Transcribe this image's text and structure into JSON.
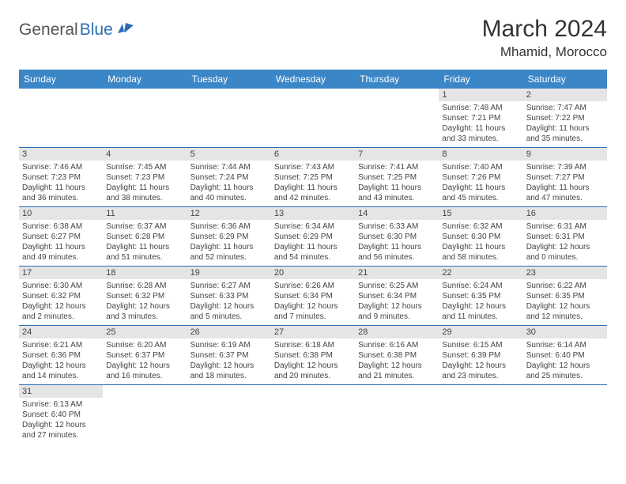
{
  "brand": {
    "part1": "General",
    "part2": "Blue"
  },
  "title": "March 2024",
  "location": "Mhamid, Morocco",
  "colors": {
    "header_bg": "#3b86c7",
    "header_text": "#ffffff",
    "daynum_bg": "#e5e5e5",
    "cell_border": "#2b6db5",
    "brand_blue": "#2b6db5",
    "brand_gray": "#555555"
  },
  "weekdays": [
    "Sunday",
    "Monday",
    "Tuesday",
    "Wednesday",
    "Thursday",
    "Friday",
    "Saturday"
  ],
  "weeks": [
    [
      null,
      null,
      null,
      null,
      null,
      {
        "n": "1",
        "sr": "Sunrise: 7:48 AM",
        "ss": "Sunset: 7:21 PM",
        "dl": "Daylight: 11 hours and 33 minutes."
      },
      {
        "n": "2",
        "sr": "Sunrise: 7:47 AM",
        "ss": "Sunset: 7:22 PM",
        "dl": "Daylight: 11 hours and 35 minutes."
      }
    ],
    [
      {
        "n": "3",
        "sr": "Sunrise: 7:46 AM",
        "ss": "Sunset: 7:23 PM",
        "dl": "Daylight: 11 hours and 36 minutes."
      },
      {
        "n": "4",
        "sr": "Sunrise: 7:45 AM",
        "ss": "Sunset: 7:23 PM",
        "dl": "Daylight: 11 hours and 38 minutes."
      },
      {
        "n": "5",
        "sr": "Sunrise: 7:44 AM",
        "ss": "Sunset: 7:24 PM",
        "dl": "Daylight: 11 hours and 40 minutes."
      },
      {
        "n": "6",
        "sr": "Sunrise: 7:43 AM",
        "ss": "Sunset: 7:25 PM",
        "dl": "Daylight: 11 hours and 42 minutes."
      },
      {
        "n": "7",
        "sr": "Sunrise: 7:41 AM",
        "ss": "Sunset: 7:25 PM",
        "dl": "Daylight: 11 hours and 43 minutes."
      },
      {
        "n": "8",
        "sr": "Sunrise: 7:40 AM",
        "ss": "Sunset: 7:26 PM",
        "dl": "Daylight: 11 hours and 45 minutes."
      },
      {
        "n": "9",
        "sr": "Sunrise: 7:39 AM",
        "ss": "Sunset: 7:27 PM",
        "dl": "Daylight: 11 hours and 47 minutes."
      }
    ],
    [
      {
        "n": "10",
        "sr": "Sunrise: 6:38 AM",
        "ss": "Sunset: 6:27 PM",
        "dl": "Daylight: 11 hours and 49 minutes."
      },
      {
        "n": "11",
        "sr": "Sunrise: 6:37 AM",
        "ss": "Sunset: 6:28 PM",
        "dl": "Daylight: 11 hours and 51 minutes."
      },
      {
        "n": "12",
        "sr": "Sunrise: 6:36 AM",
        "ss": "Sunset: 6:29 PM",
        "dl": "Daylight: 11 hours and 52 minutes."
      },
      {
        "n": "13",
        "sr": "Sunrise: 6:34 AM",
        "ss": "Sunset: 6:29 PM",
        "dl": "Daylight: 11 hours and 54 minutes."
      },
      {
        "n": "14",
        "sr": "Sunrise: 6:33 AM",
        "ss": "Sunset: 6:30 PM",
        "dl": "Daylight: 11 hours and 56 minutes."
      },
      {
        "n": "15",
        "sr": "Sunrise: 6:32 AM",
        "ss": "Sunset: 6:30 PM",
        "dl": "Daylight: 11 hours and 58 minutes."
      },
      {
        "n": "16",
        "sr": "Sunrise: 6:31 AM",
        "ss": "Sunset: 6:31 PM",
        "dl": "Daylight: 12 hours and 0 minutes."
      }
    ],
    [
      {
        "n": "17",
        "sr": "Sunrise: 6:30 AM",
        "ss": "Sunset: 6:32 PM",
        "dl": "Daylight: 12 hours and 2 minutes."
      },
      {
        "n": "18",
        "sr": "Sunrise: 6:28 AM",
        "ss": "Sunset: 6:32 PM",
        "dl": "Daylight: 12 hours and 3 minutes."
      },
      {
        "n": "19",
        "sr": "Sunrise: 6:27 AM",
        "ss": "Sunset: 6:33 PM",
        "dl": "Daylight: 12 hours and 5 minutes."
      },
      {
        "n": "20",
        "sr": "Sunrise: 6:26 AM",
        "ss": "Sunset: 6:34 PM",
        "dl": "Daylight: 12 hours and 7 minutes."
      },
      {
        "n": "21",
        "sr": "Sunrise: 6:25 AM",
        "ss": "Sunset: 6:34 PM",
        "dl": "Daylight: 12 hours and 9 minutes."
      },
      {
        "n": "22",
        "sr": "Sunrise: 6:24 AM",
        "ss": "Sunset: 6:35 PM",
        "dl": "Daylight: 12 hours and 11 minutes."
      },
      {
        "n": "23",
        "sr": "Sunrise: 6:22 AM",
        "ss": "Sunset: 6:35 PM",
        "dl": "Daylight: 12 hours and 12 minutes."
      }
    ],
    [
      {
        "n": "24",
        "sr": "Sunrise: 6:21 AM",
        "ss": "Sunset: 6:36 PM",
        "dl": "Daylight: 12 hours and 14 minutes."
      },
      {
        "n": "25",
        "sr": "Sunrise: 6:20 AM",
        "ss": "Sunset: 6:37 PM",
        "dl": "Daylight: 12 hours and 16 minutes."
      },
      {
        "n": "26",
        "sr": "Sunrise: 6:19 AM",
        "ss": "Sunset: 6:37 PM",
        "dl": "Daylight: 12 hours and 18 minutes."
      },
      {
        "n": "27",
        "sr": "Sunrise: 6:18 AM",
        "ss": "Sunset: 6:38 PM",
        "dl": "Daylight: 12 hours and 20 minutes."
      },
      {
        "n": "28",
        "sr": "Sunrise: 6:16 AM",
        "ss": "Sunset: 6:38 PM",
        "dl": "Daylight: 12 hours and 21 minutes."
      },
      {
        "n": "29",
        "sr": "Sunrise: 6:15 AM",
        "ss": "Sunset: 6:39 PM",
        "dl": "Daylight: 12 hours and 23 minutes."
      },
      {
        "n": "30",
        "sr": "Sunrise: 6:14 AM",
        "ss": "Sunset: 6:40 PM",
        "dl": "Daylight: 12 hours and 25 minutes."
      }
    ],
    [
      {
        "n": "31",
        "sr": "Sunrise: 6:13 AM",
        "ss": "Sunset: 6:40 PM",
        "dl": "Daylight: 12 hours and 27 minutes."
      },
      null,
      null,
      null,
      null,
      null,
      null
    ]
  ]
}
